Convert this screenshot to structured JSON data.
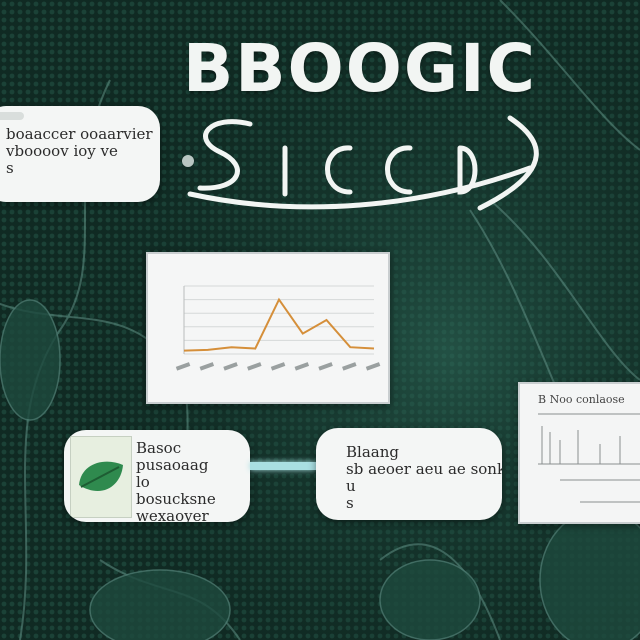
{
  "header": {
    "title": "BBOOGIC",
    "subtitle": "SICCIOI"
  },
  "cards": {
    "top_left": {
      "lines": [
        "boaaccer ooaarvier",
        "vboooov ioy ve",
        "s"
      ]
    },
    "mid_left": {
      "lines": [
        "Basoc",
        "pusaoaag",
        "lo",
        "bosucksne",
        "wexaoyer"
      ]
    },
    "mid_right": {
      "lines": [
        "Blaang",
        "sb aeoer aeu ae sonk",
        "u",
        "s"
      ]
    }
  },
  "chart_data": {
    "type": "line",
    "title": "",
    "xlabel": "",
    "ylabel": "",
    "x": [
      0,
      1,
      2,
      3,
      4,
      5,
      6,
      7,
      8
    ],
    "series": [
      {
        "values": [
          5,
          6,
          10,
          8,
          80,
          30,
          50,
          10,
          8
        ]
      }
    ],
    "ylim": [
      0,
      100
    ],
    "grid": true
  },
  "table_panel": {
    "caption": "B Noo conlaose"
  },
  "colors": {
    "background": "#123028",
    "line": "#d58f3a",
    "connector": "#a9dfe2",
    "card": "#f4f6f5"
  }
}
